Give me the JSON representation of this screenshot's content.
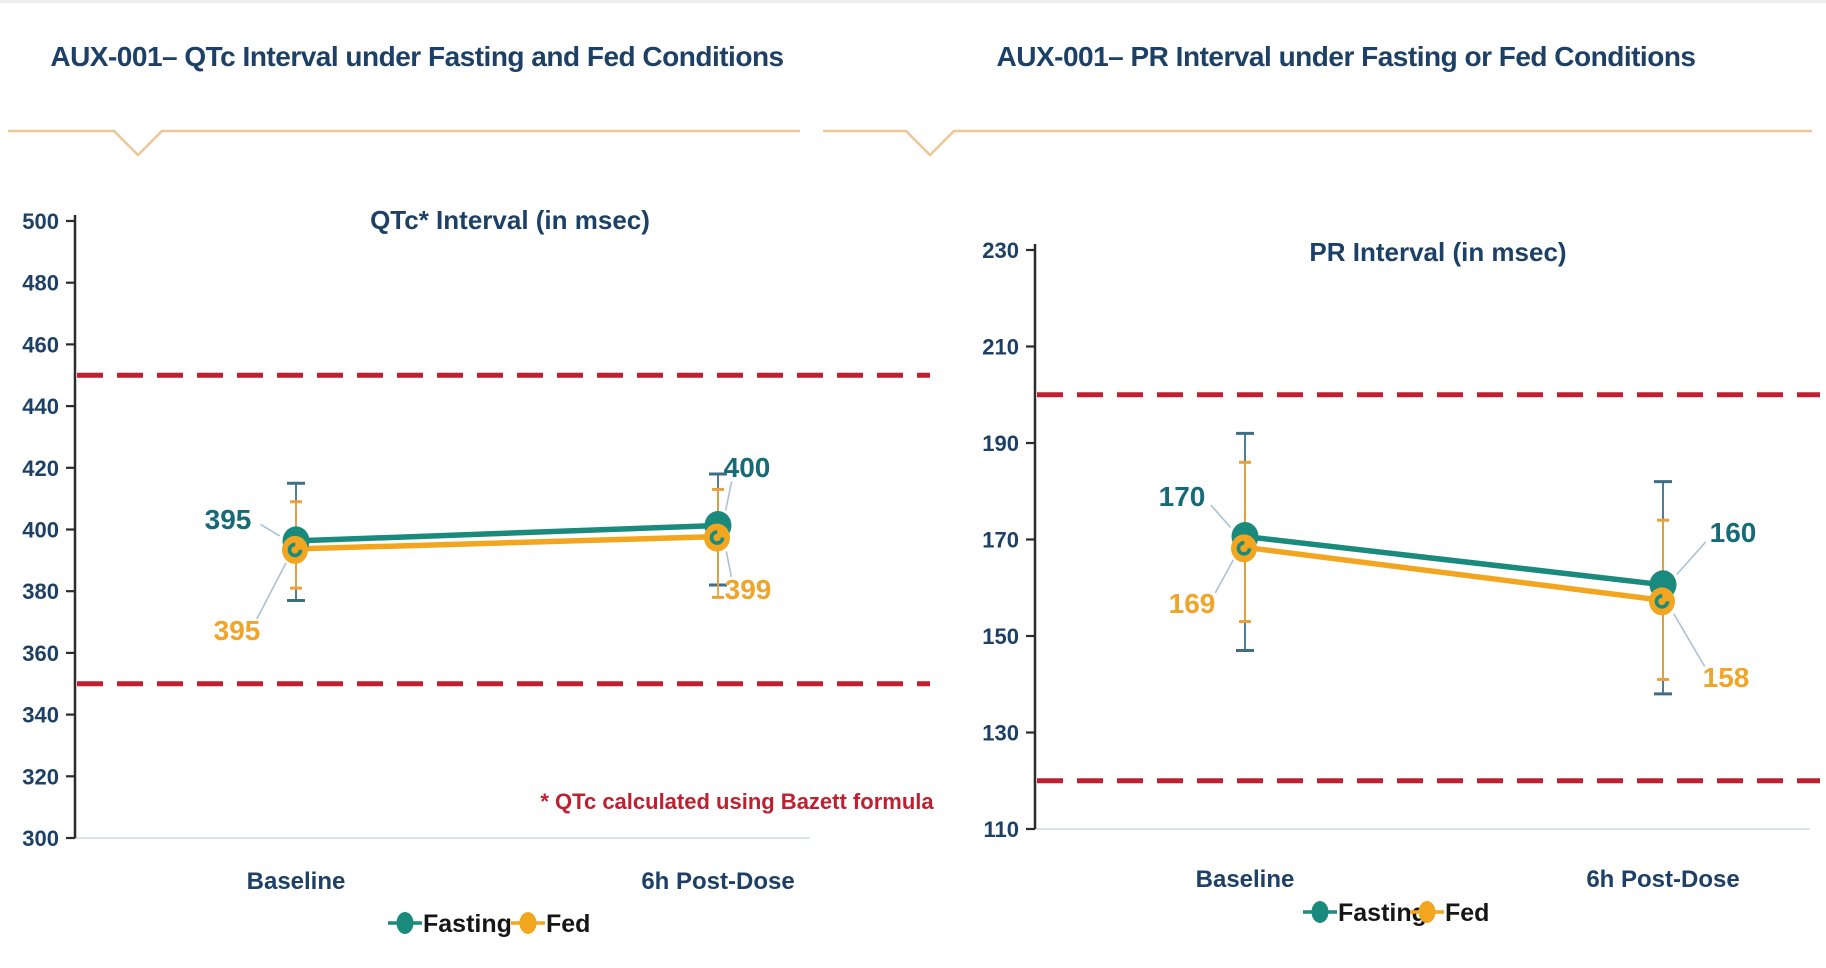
{
  "slide": {
    "left_title": "AUX-001– QTc Interval under Fasting and Fed Conditions",
    "right_title": "AUX-001– PR Interval under Fasting or Fed Conditions"
  },
  "colors": {
    "navy": "#1d4066",
    "teal": "#1a8a7c",
    "orange": "#f2a51f",
    "red": "#c01f2f",
    "axis_dark": "#2b2b2b",
    "axis_light": "#dbe3ea",
    "leader": "#aac2d1",
    "divider": "#ecc695",
    "legend_text": "#161616",
    "err_fasting": "#3f6d85",
    "err_fed": "#e9a23b",
    "label_fasting": "#176a78",
    "label_fed": "#efa42a"
  },
  "chart_data": [
    {
      "id": "qtc",
      "type": "line",
      "title": "QTc* Interval (in msec)",
      "categories": [
        "Baseline",
        "6h Post-Dose"
      ],
      "series": [
        {
          "name": "Fasting",
          "color": "#1a8a7c",
          "values": [
            395,
            400
          ],
          "error_low": [
            377,
            382
          ],
          "error_high": [
            415,
            418
          ],
          "labels": [
            "395",
            "400"
          ]
        },
        {
          "name": "Fed",
          "color": "#f2a51f",
          "values": [
            395,
            399
          ],
          "error_low": [
            381,
            378
          ],
          "error_high": [
            409,
            413
          ],
          "labels": [
            "395",
            "399"
          ]
        }
      ],
      "ylim": [
        300,
        500
      ],
      "yticks": [
        300,
        320,
        340,
        360,
        380,
        400,
        420,
        440,
        460,
        480,
        500
      ],
      "ref_lines": [
        450,
        350
      ],
      "annotation": "* QTc calculated using Bazett formula",
      "legend": [
        "Fasting",
        "Fed"
      ],
      "grid": false,
      "legend_position": "bottom"
    },
    {
      "id": "pr",
      "type": "line",
      "title": "PR Interval (in msec)",
      "categories": [
        "Baseline",
        "6h Post-Dose"
      ],
      "series": [
        {
          "name": "Fasting",
          "color": "#1a8a7c",
          "values": [
            170,
            160
          ],
          "error_low": [
            147,
            138
          ],
          "error_high": [
            192,
            182
          ],
          "labels": [
            "170",
            "160"
          ]
        },
        {
          "name": "Fed",
          "color": "#f2a51f",
          "values": [
            169,
            158
          ],
          "error_low": [
            153,
            141
          ],
          "error_high": [
            186,
            174
          ],
          "labels": [
            "169",
            "158"
          ]
        }
      ],
      "ylim": [
        110,
        230
      ],
      "yticks": [
        110,
        130,
        150,
        170,
        190,
        210,
        230
      ],
      "ref_lines": [
        200,
        120
      ],
      "annotation": "",
      "legend": [
        "Fasting",
        "Fed"
      ],
      "grid": false,
      "legend_position": "bottom"
    }
  ]
}
